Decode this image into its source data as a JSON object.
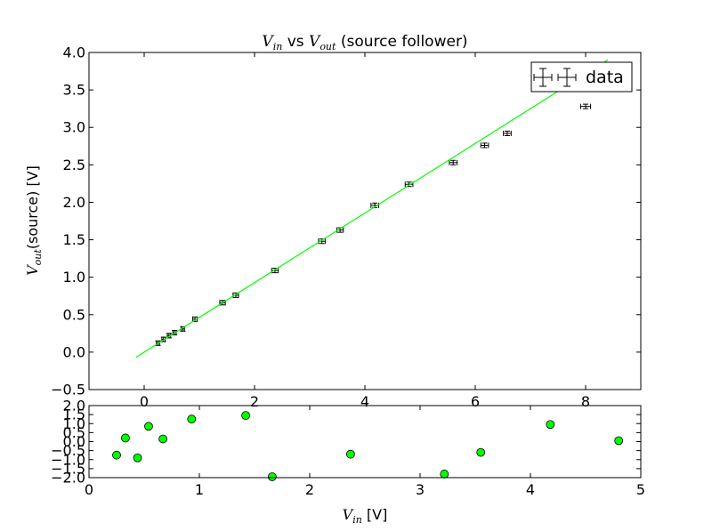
{
  "chart_data": [
    {
      "type": "scatter",
      "panel": "main",
      "title": {
        "sym": "V",
        "sub_in": "in",
        "vs": " vs ",
        "sym2": "V",
        "sub_out": "out",
        "rest": " (source follower)"
      },
      "ylabel": {
        "sym": "V",
        "sub": "out",
        "rest": "(source) [V]"
      },
      "xlim": [
        -1,
        9
      ],
      "ylim": [
        -0.5,
        4.0
      ],
      "xticks": [
        0,
        2,
        4,
        6,
        8
      ],
      "yticks": [
        -0.5,
        0.0,
        0.5,
        1.0,
        1.5,
        2.0,
        2.5,
        3.0,
        3.5,
        4.0
      ],
      "yticklabels": [
        "−0.5",
        "0.0",
        "0.5",
        "1.0",
        "1.5",
        "2.0",
        "2.5",
        "3.0",
        "3.5",
        "4.0"
      ],
      "xticklabels": [
        "0",
        "2",
        "4",
        "6",
        "8"
      ],
      "grid": false,
      "legend": {
        "placement": "top-right",
        "label": "data"
      },
      "series": [
        {
          "name": "data",
          "kind": "errorbar",
          "color": "#000000",
          "x": [
            0.25,
            0.35,
            0.45,
            0.55,
            0.7,
            0.92,
            1.42,
            1.66,
            2.37,
            3.22,
            3.55,
            4.18,
            4.8,
            5.6,
            6.17,
            6.58,
            8.0
          ],
          "y": [
            0.12,
            0.17,
            0.22,
            0.26,
            0.31,
            0.44,
            0.66,
            0.76,
            1.09,
            1.48,
            1.63,
            1.96,
            2.24,
            2.53,
            2.76,
            2.92,
            3.28
          ],
          "xerr": [
            0.03,
            0.03,
            0.03,
            0.03,
            0.03,
            0.04,
            0.05,
            0.05,
            0.06,
            0.06,
            0.06,
            0.07,
            0.07,
            0.07,
            0.07,
            0.07,
            0.09
          ],
          "yerr": [
            0.03,
            0.03,
            0.03,
            0.03,
            0.03,
            0.03,
            0.03,
            0.03,
            0.03,
            0.03,
            0.03,
            0.03,
            0.03,
            0.03,
            0.03,
            0.03,
            0.03
          ]
        },
        {
          "kind": "line",
          "color": "#00ff00",
          "x": [
            -0.15,
            8.4
          ],
          "y": [
            -0.07,
            3.9
          ]
        }
      ]
    },
    {
      "type": "scatter",
      "panel": "residuals",
      "xlabel": {
        "sym": "V",
        "sub": "in",
        "rest": " [V]"
      },
      "xlim": [
        0,
        5
      ],
      "ylim": [
        -2.0,
        2.0
      ],
      "xticks": [
        0,
        1,
        2,
        3,
        4,
        5
      ],
      "xticklabels": [
        "0",
        "1",
        "2",
        "3",
        "4",
        "5"
      ],
      "yticks": [
        -2.0,
        -1.5,
        -1.0,
        -0.5,
        0.0,
        0.5,
        1.0,
        1.5,
        2.0
      ],
      "yticklabels": [
        "−2.0",
        "−1.5",
        "−1.0",
        "−0.5",
        "0.0",
        "0.5",
        "1.0",
        "1.5",
        "2.0"
      ],
      "grid": false,
      "series": [
        {
          "kind": "markers",
          "color": "#00ff00",
          "x": [
            0.25,
            0.33,
            0.44,
            0.54,
            0.67,
            0.93,
            1.42,
            1.66,
            2.37,
            3.22,
            3.55,
            4.18,
            4.8
          ],
          "y": [
            -0.75,
            0.2,
            -0.9,
            0.85,
            0.15,
            1.25,
            1.45,
            -1.95,
            -0.7,
            -1.8,
            -0.6,
            0.95,
            0.05
          ]
        }
      ]
    }
  ]
}
